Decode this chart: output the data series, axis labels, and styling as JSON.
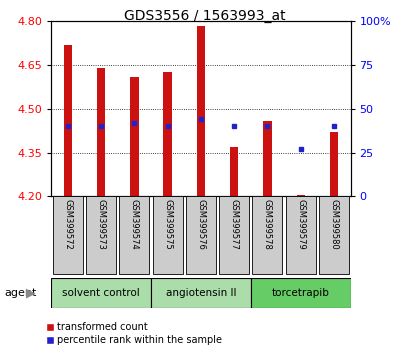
{
  "title": "GDS3556 / 1563993_at",
  "samples": [
    "GSM399572",
    "GSM399573",
    "GSM399574",
    "GSM399575",
    "GSM399576",
    "GSM399577",
    "GSM399578",
    "GSM399579",
    "GSM399580"
  ],
  "bar_values": [
    4.72,
    4.64,
    4.61,
    4.625,
    4.785,
    4.37,
    4.46,
    4.205,
    4.42
  ],
  "bar_base": 4.2,
  "percentile_ranks": [
    40,
    40,
    42,
    40,
    44,
    40,
    40,
    27,
    40
  ],
  "groups": [
    {
      "label": "solvent control",
      "start": 0,
      "end": 3,
      "color": "#aaddaa"
    },
    {
      "label": "angiotensin II",
      "start": 3,
      "end": 6,
      "color": "#aaddaa"
    },
    {
      "label": "torcetrapib",
      "start": 6,
      "end": 9,
      "color": "#66cc66"
    }
  ],
  "ylim_left": [
    4.2,
    4.8
  ],
  "ylim_right": [
    0,
    100
  ],
  "yticks_left": [
    4.2,
    4.35,
    4.5,
    4.65,
    4.8
  ],
  "yticks_right": [
    0,
    25,
    50,
    75,
    100
  ],
  "ytick_labels_right": [
    "0",
    "25",
    "50",
    "75",
    "100%"
  ],
  "bar_color": "#cc1111",
  "blue_color": "#2222cc",
  "bar_width": 0.25,
  "legend_items": [
    "transformed count",
    "percentile rank within the sample"
  ],
  "background_color": "#ffffff",
  "plot_bg": "#ffffff",
  "label_box_color": "#cccccc",
  "grid_color": "#000000"
}
